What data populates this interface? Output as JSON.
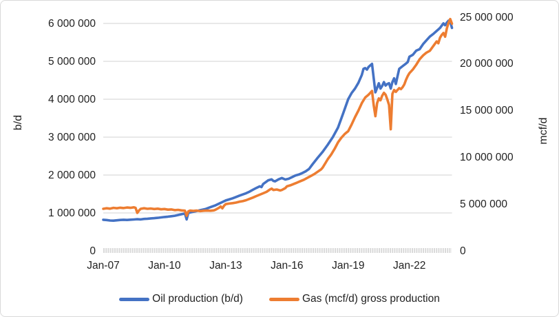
{
  "page": {
    "background": "#ffffff",
    "border_color": "#d9d9d9",
    "text_color": "#1f1f1f"
  },
  "chart_data": {
    "type": "line",
    "title": "",
    "grid": {
      "horizontal": true,
      "vertical": false,
      "color": "#d9d9d9"
    },
    "x_axis": {
      "unit": "months since Jan-2007 (monthly data)",
      "tick_labels": [
        "Jan-07",
        "Jan-10",
        "Jan-13",
        "Jan-16",
        "Jan-19",
        "Jan-22"
      ],
      "tick_months": [
        0,
        36,
        72,
        108,
        144,
        180
      ],
      "range_months": [
        0,
        205
      ]
    },
    "left_axis": {
      "label": "b/d",
      "min": 0,
      "max": 6000000,
      "step": 1000000,
      "tick_labels": [
        "0",
        "1 000 000",
        "2 000 000",
        "3 000 000",
        "4 000 000",
        "5 000 000",
        "6 000 000"
      ]
    },
    "right_axis": {
      "label": "mcf/d",
      "min": 0,
      "max": 25000000,
      "step": 5000000,
      "tick_labels": [
        "0",
        "5 000 000",
        "10 000 000",
        "15 000 000",
        "20 000 000",
        "25 000 000"
      ]
    },
    "legend": {
      "position": "bottom",
      "items": [
        {
          "label": "Oil production (b/d)",
          "color": "#4472C4"
        },
        {
          "label": "Gas (mcf/d) gross production",
          "color": "#ED7D31"
        }
      ]
    },
    "series": [
      {
        "name": "Oil production (b/d)",
        "axis": "left",
        "color": "#4472C4",
        "points": [
          [
            0,
            820000
          ],
          [
            2,
            812000
          ],
          [
            4,
            800000
          ],
          [
            6,
            796000
          ],
          [
            8,
            806000
          ],
          [
            10,
            814000
          ],
          [
            12,
            820000
          ],
          [
            14,
            815000
          ],
          [
            16,
            822000
          ],
          [
            18,
            828000
          ],
          [
            20,
            834000
          ],
          [
            22,
            830000
          ],
          [
            24,
            842000
          ],
          [
            26,
            848000
          ],
          [
            28,
            856000
          ],
          [
            30,
            862000
          ],
          [
            32,
            871000
          ],
          [
            34,
            881000
          ],
          [
            36,
            892000
          ],
          [
            38,
            901000
          ],
          [
            40,
            913000
          ],
          [
            42,
            926000
          ],
          [
            44,
            946000
          ],
          [
            46,
            966000
          ],
          [
            48,
            985000
          ],
          [
            49,
            830000
          ],
          [
            50,
            1000000
          ],
          [
            52,
            1022000
          ],
          [
            54,
            1042000
          ],
          [
            57,
            1072000
          ],
          [
            60,
            1102000
          ],
          [
            63,
            1152000
          ],
          [
            66,
            1202000
          ],
          [
            69,
            1266000
          ],
          [
            72,
            1330000
          ],
          [
            74,
            1356000
          ],
          [
            76,
            1386000
          ],
          [
            78,
            1420000
          ],
          [
            80,
            1456000
          ],
          [
            82,
            1488000
          ],
          [
            84,
            1520000
          ],
          [
            86,
            1562000
          ],
          [
            88,
            1612000
          ],
          [
            90,
            1660000
          ],
          [
            92,
            1702000
          ],
          [
            93,
            1682000
          ],
          [
            94,
            1762000
          ],
          [
            96,
            1830000
          ],
          [
            97,
            1862000
          ],
          [
            99,
            1886000
          ],
          [
            100,
            1846000
          ],
          [
            101,
            1832000
          ],
          [
            103,
            1886000
          ],
          [
            105,
            1922000
          ],
          [
            107,
            1882000
          ],
          [
            109,
            1902000
          ],
          [
            111,
            1946000
          ],
          [
            113,
            1990000
          ],
          [
            115,
            2012000
          ],
          [
            117,
            2052000
          ],
          [
            119,
            2098000
          ],
          [
            121,
            2162000
          ],
          [
            123,
            2282000
          ],
          [
            126,
            2452000
          ],
          [
            129,
            2612000
          ],
          [
            132,
            2800000
          ],
          [
            135,
            3002000
          ],
          [
            138,
            3252000
          ],
          [
            141,
            3622000
          ],
          [
            144,
            4002000
          ],
          [
            146,
            4162000
          ],
          [
            148,
            4282000
          ],
          [
            150,
            4432000
          ],
          [
            152,
            4642000
          ],
          [
            153,
            4802000
          ],
          [
            154,
            4822000
          ],
          [
            155,
            4782000
          ],
          [
            156,
            4852000
          ],
          [
            157,
            4892000
          ],
          [
            158,
            4932000
          ],
          [
            159,
            4562000
          ],
          [
            160,
            4182000
          ],
          [
            161,
            4302000
          ],
          [
            162,
            4422000
          ],
          [
            163,
            4282000
          ],
          [
            164,
            4352000
          ],
          [
            165,
            4452000
          ],
          [
            166,
            4362000
          ],
          [
            167,
            4402000
          ],
          [
            168,
            4422000
          ],
          [
            169,
            4282000
          ],
          [
            170,
            4452000
          ],
          [
            171,
            4552000
          ],
          [
            172,
            4402000
          ],
          [
            173,
            4602000
          ],
          [
            174,
            4802000
          ],
          [
            176,
            4872000
          ],
          [
            178,
            4942000
          ],
          [
            179,
            4982000
          ],
          [
            180,
            5122000
          ],
          [
            182,
            5172000
          ],
          [
            184,
            5282000
          ],
          [
            186,
            5322000
          ],
          [
            188,
            5452000
          ],
          [
            190,
            5552000
          ],
          [
            192,
            5652000
          ],
          [
            194,
            5722000
          ],
          [
            196,
            5802000
          ],
          [
            198,
            5882000
          ],
          [
            200,
            6002000
          ],
          [
            201,
            5952000
          ],
          [
            202,
            6022000
          ],
          [
            203,
            6072000
          ],
          [
            204,
            6052000
          ],
          [
            205,
            5882000
          ]
        ]
      },
      {
        "name": "Gas (mcf/d) gross production",
        "axis": "right",
        "color": "#ED7D31",
        "points": [
          [
            0,
            4500000
          ],
          [
            2,
            4560000
          ],
          [
            4,
            4510000
          ],
          [
            6,
            4600000
          ],
          [
            8,
            4560000
          ],
          [
            10,
            4620000
          ],
          [
            12,
            4580000
          ],
          [
            14,
            4640000
          ],
          [
            16,
            4600000
          ],
          [
            18,
            4660000
          ],
          [
            19,
            4600000
          ],
          [
            20,
            4060000
          ],
          [
            21,
            4320000
          ],
          [
            22,
            4500000
          ],
          [
            24,
            4560000
          ],
          [
            26,
            4500000
          ],
          [
            28,
            4530000
          ],
          [
            30,
            4480000
          ],
          [
            32,
            4510000
          ],
          [
            34,
            4450000
          ],
          [
            36,
            4480000
          ],
          [
            38,
            4410000
          ],
          [
            40,
            4430000
          ],
          [
            42,
            4360000
          ],
          [
            44,
            4390000
          ],
          [
            46,
            4330000
          ],
          [
            48,
            4300000
          ],
          [
            49,
            3750000
          ],
          [
            50,
            4220000
          ],
          [
            51,
            4310000
          ],
          [
            53,
            4280000
          ],
          [
            55,
            4310000
          ],
          [
            57,
            4250000
          ],
          [
            59,
            4290000
          ],
          [
            61,
            4310000
          ],
          [
            63,
            4290000
          ],
          [
            65,
            4330000
          ],
          [
            66,
            4400000
          ],
          [
            68,
            4600000
          ],
          [
            69,
            4750000
          ],
          [
            70,
            4550000
          ],
          [
            71,
            4820000
          ],
          [
            72,
            5000000
          ],
          [
            74,
            5060000
          ],
          [
            76,
            5100000
          ],
          [
            78,
            5160000
          ],
          [
            80,
            5260000
          ],
          [
            82,
            5320000
          ],
          [
            84,
            5420000
          ],
          [
            86,
            5560000
          ],
          [
            88,
            5700000
          ],
          [
            90,
            5860000
          ],
          [
            92,
            6010000
          ],
          [
            94,
            6160000
          ],
          [
            96,
            6310000
          ],
          [
            98,
            6560000
          ],
          [
            99,
            6660000
          ],
          [
            100,
            6510000
          ],
          [
            102,
            6560000
          ],
          [
            104,
            6460000
          ],
          [
            105,
            6510000
          ],
          [
            107,
            6710000
          ],
          [
            108,
            6900000
          ],
          [
            110,
            7010000
          ],
          [
            112,
            7160000
          ],
          [
            114,
            7310000
          ],
          [
            116,
            7460000
          ],
          [
            118,
            7610000
          ],
          [
            120,
            7810000
          ],
          [
            122,
            8010000
          ],
          [
            124,
            8210000
          ],
          [
            126,
            8460000
          ],
          [
            128,
            8710000
          ],
          [
            129,
            8910000
          ],
          [
            131,
            9510000
          ],
          [
            132,
            9810000
          ],
          [
            134,
            10310000
          ],
          [
            136,
            10910000
          ],
          [
            138,
            11610000
          ],
          [
            140,
            12110000
          ],
          [
            142,
            12510000
          ],
          [
            144,
            12810000
          ],
          [
            146,
            13510000
          ],
          [
            148,
            14310000
          ],
          [
            150,
            15010000
          ],
          [
            152,
            15810000
          ],
          [
            154,
            16410000
          ],
          [
            156,
            16710000
          ],
          [
            157,
            16910000
          ],
          [
            158,
            17110000
          ],
          [
            159,
            15610000
          ],
          [
            160,
            14410000
          ],
          [
            161,
            15810000
          ],
          [
            162,
            16310000
          ],
          [
            163,
            16110000
          ],
          [
            164,
            16610000
          ],
          [
            165,
            16910000
          ],
          [
            166,
            16710000
          ],
          [
            167,
            16210000
          ],
          [
            168,
            15610000
          ],
          [
            169,
            13010000
          ],
          [
            170,
            16810000
          ],
          [
            171,
            17210000
          ],
          [
            172,
            17010000
          ],
          [
            173,
            17210000
          ],
          [
            174,
            17410000
          ],
          [
            175,
            17310000
          ],
          [
            176,
            17510000
          ],
          [
            177,
            17810000
          ],
          [
            178,
            18310000
          ],
          [
            179,
            18710000
          ],
          [
            180,
            19010000
          ],
          [
            182,
            19410000
          ],
          [
            184,
            19910000
          ],
          [
            186,
            20510000
          ],
          [
            188,
            20910000
          ],
          [
            190,
            21210000
          ],
          [
            192,
            21410000
          ],
          [
            194,
            21910000
          ],
          [
            196,
            22410000
          ],
          [
            197,
            22210000
          ],
          [
            198,
            22810000
          ],
          [
            199,
            23110000
          ],
          [
            200,
            23310000
          ],
          [
            201,
            22910000
          ],
          [
            202,
            23810000
          ],
          [
            203,
            24410000
          ],
          [
            204,
            24810000
          ],
          [
            205,
            24310000
          ]
        ]
      }
    ]
  }
}
